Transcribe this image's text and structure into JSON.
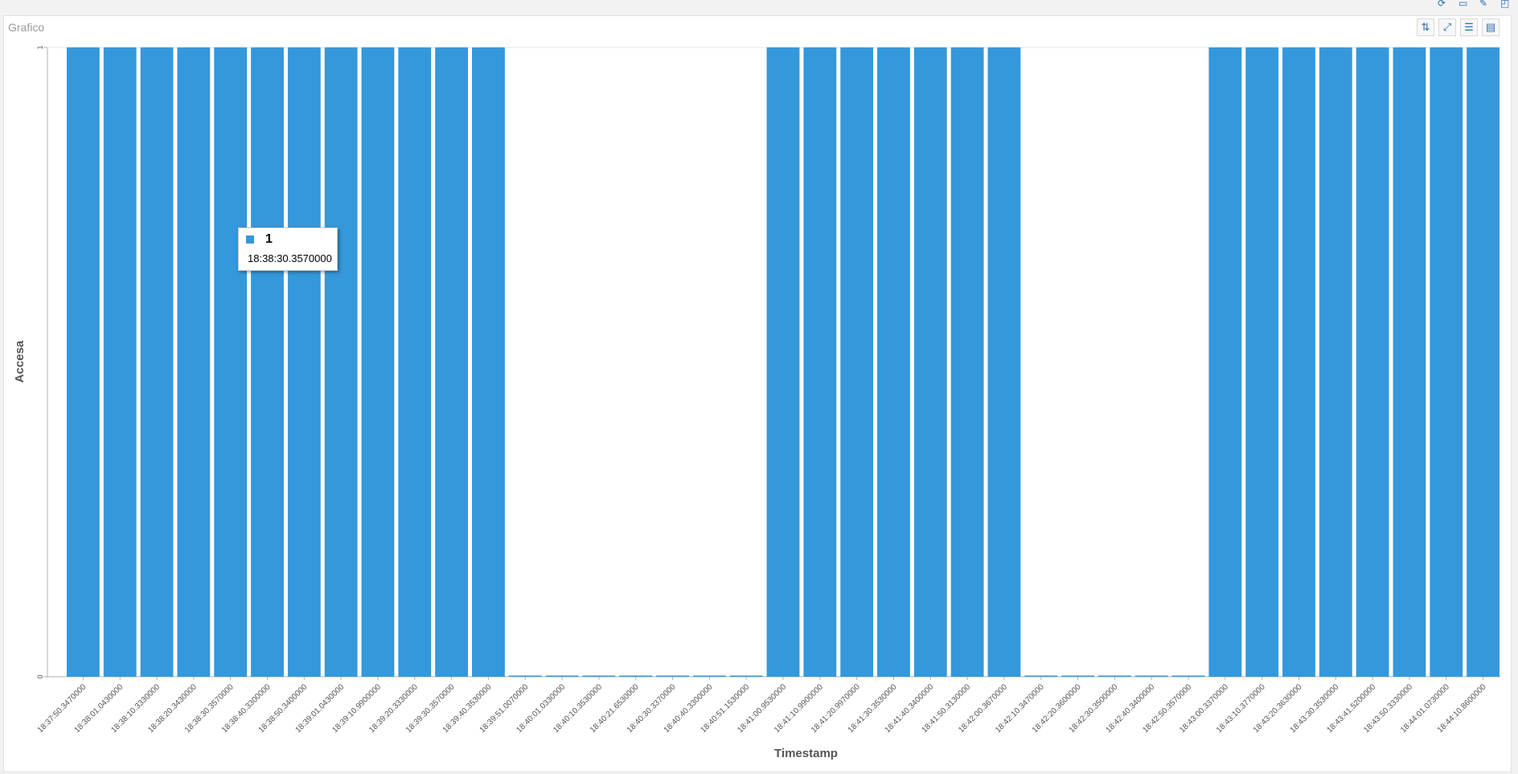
{
  "panel": {
    "title": "Grafico"
  },
  "toolbar": {
    "icons": [
      "sort-icon",
      "expand-icon",
      "filter-search-icon",
      "chat-icon"
    ]
  },
  "top_icons": [
    "refresh-icon",
    "folder-icon",
    "edit-icon",
    "window-icon"
  ],
  "tooltip": {
    "value": "1",
    "label": "18:38:30.3570000"
  },
  "colors": {
    "bar": "#3498db",
    "axis": "#b0b0b0",
    "text": "#555555"
  },
  "chart_data": {
    "type": "bar",
    "xlabel": "Timestamp",
    "ylabel": "Accesa",
    "ylim": [
      0,
      1
    ],
    "yticks": [
      "0",
      "1"
    ],
    "categories": [
      "18:37:50.3470000",
      "18:38:01.0430000",
      "18:38:10.3330000",
      "18:38:20.3430000",
      "18:38:30.3570000",
      "18:38:40.3300000",
      "18:38:50.3400000",
      "18:39:01.0430000",
      "18:39:10.9900000",
      "18:39:20.3330000",
      "18:39:30.3570000",
      "18:39:40.3530000",
      "18:39:51.0070000",
      "18:40:01.0330000",
      "18:40:10.3530000",
      "18:40:21.6530000",
      "18:40:30.3370000",
      "18:40:40.3300000",
      "18:40:51.1530000",
      "18:41:00.9530000",
      "18:41:10.9900000",
      "18:41:20.9970000",
      "18:41:30.3530000",
      "18:41:40.3400000",
      "18:41:50.3130000",
      "18:42:00.3670000",
      "18:42:10.3470000",
      "18:42:20.3600000",
      "18:42:30.3500000",
      "18:42:40.3400000",
      "18:42:50.3570000",
      "18:43:00.3370000",
      "18:43:10.3770000",
      "18:43:20.3630000",
      "18:43:30.3530000",
      "18:43:41.5200000",
      "18:43:50.3330000",
      "18:44:01.0730000",
      "18:44:10.8600000"
    ],
    "values": [
      1,
      1,
      1,
      1,
      1,
      1,
      1,
      1,
      1,
      1,
      1,
      1,
      0,
      0,
      0,
      0,
      0,
      0,
      0,
      1,
      1,
      1,
      1,
      1,
      1,
      1,
      0,
      0,
      0,
      0,
      0,
      1,
      1,
      1,
      1,
      1,
      1,
      1,
      1
    ],
    "grid": false,
    "legend": "none"
  }
}
